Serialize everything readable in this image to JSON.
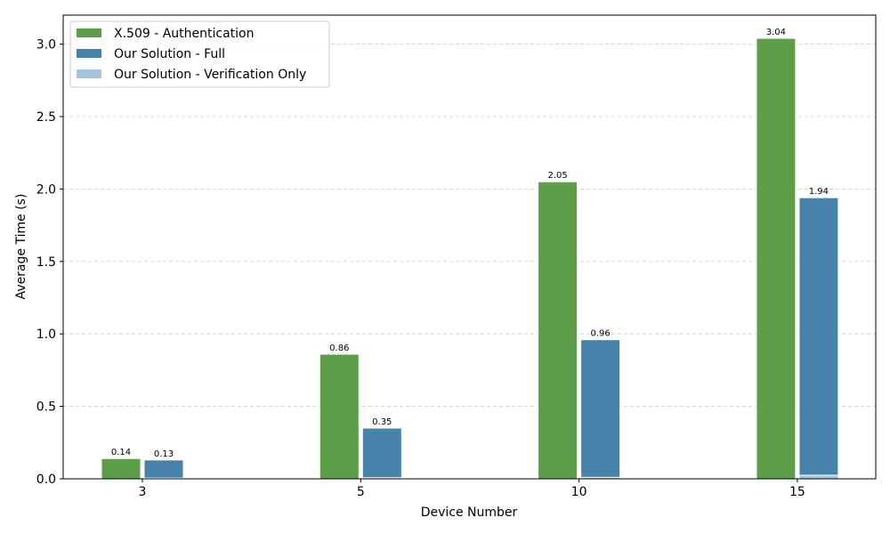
{
  "chart_data": {
    "type": "bar",
    "categories": [
      "3",
      "5",
      "10",
      "15"
    ],
    "series": [
      {
        "name": "X.509 - Authentication",
        "color": "#5d9f48",
        "values": [
          0.14,
          0.86,
          2.05,
          3.04
        ],
        "labels": [
          "0.14",
          "0.86",
          "2.05",
          "3.04"
        ]
      },
      {
        "name": "Our Solution - Full",
        "color": "#4682a9",
        "values": [
          0.13,
          0.35,
          0.96,
          1.94
        ],
        "labels": [
          "0.13",
          "0.35",
          "0.96",
          "1.94"
        ]
      },
      {
        "name": "Our Solution - Verification Only",
        "color": "#a2c4dc",
        "values": [
          0.005,
          0.008,
          0.01,
          0.025
        ]
      }
    ],
    "overlay": {
      "base_series": 1,
      "overlay_series": 2
    },
    "xlabel": "Device Number",
    "ylabel": "Average Time (s)",
    "ylim": [
      0,
      3.2
    ],
    "yticks": [
      "0.0",
      "0.5",
      "1.0",
      "1.5",
      "2.0",
      "2.5",
      "3.0"
    ],
    "grid": "y-dashed",
    "legend_position": "top-left"
  }
}
